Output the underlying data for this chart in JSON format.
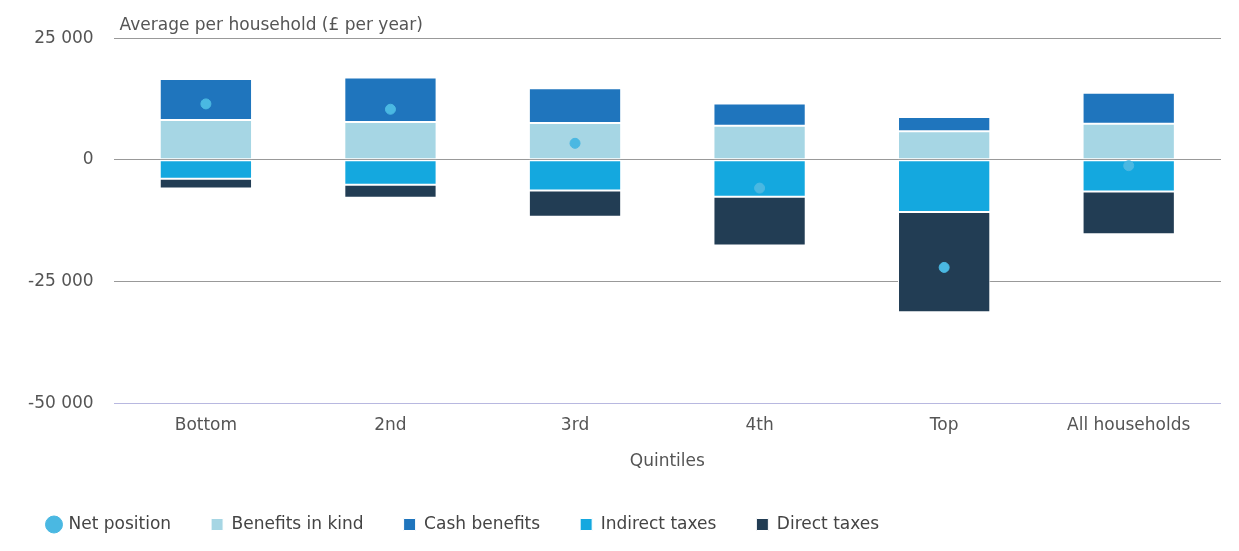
{
  "chart_data": {
    "type": "bar",
    "stacked": true,
    "ylabel": "Average per household (£ per year)",
    "xlabel": "Quintiles",
    "categories": [
      "Bottom",
      "2nd",
      "3rd",
      "4th",
      "Top",
      "All households"
    ],
    "series": [
      {
        "name": "Benefits in kind",
        "color": "#a6d6e4",
        "values": [
          8200,
          7800,
          7600,
          7000,
          5900,
          7400
        ]
      },
      {
        "name": "Cash benefits",
        "color": "#1f75bd",
        "values": [
          8400,
          9100,
          7100,
          4600,
          2900,
          6400
        ]
      },
      {
        "name": "Indirect taxes",
        "color": "#14a8df",
        "values": [
          -3900,
          -5100,
          -6300,
          -7600,
          -10700,
          -6500
        ]
      },
      {
        "name": "Direct taxes",
        "color": "#223d54",
        "values": [
          -2000,
          -2700,
          -5400,
          -10000,
          -20600,
          -8800
        ]
      },
      {
        "name": "Net position",
        "type": "scatter",
        "color": "#4ab8e2",
        "marker": "circle",
        "values": [
          11500,
          10400,
          3400,
          -5800,
          -22100,
          -1200
        ]
      }
    ],
    "ylim": [
      -50000,
      25000
    ],
    "yticks": [
      {
        "value": -50000,
        "label": "-50 000"
      },
      {
        "value": -25000,
        "label": "-25 000"
      },
      0,
      {
        "value": 25000,
        "label": "25 000"
      }
    ],
    "grid": "y",
    "legend": "bottom"
  }
}
